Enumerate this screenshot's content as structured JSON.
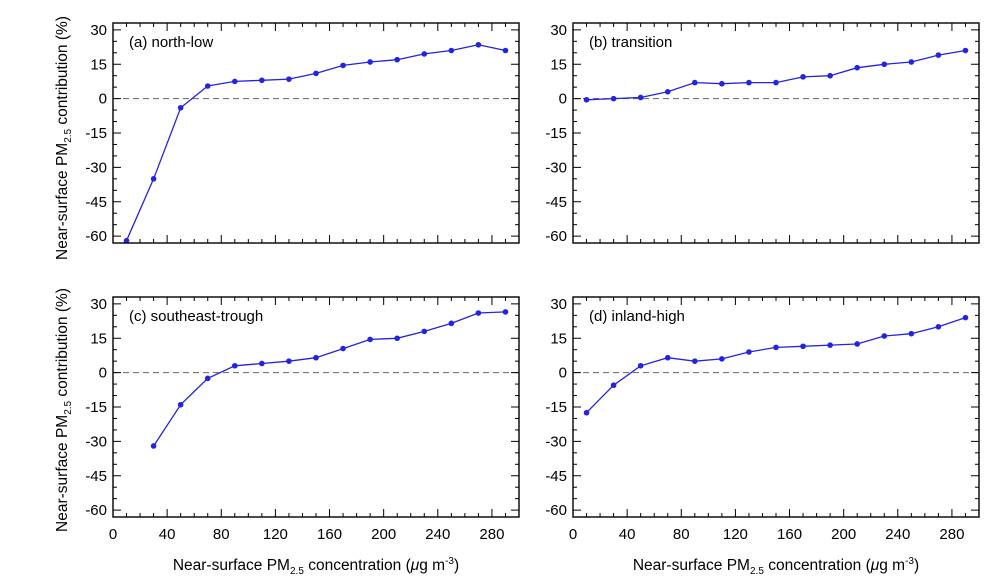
{
  "colors": {
    "series": "#2323e0",
    "zero_line": "#666666",
    "axis": "#000000"
  },
  "axis_labels": {
    "y": {
      "main": "Near-surface PM",
      "sub": "2.5",
      "suffix": " contribution (%)"
    },
    "x": {
      "main": "Near-surface PM",
      "sub": "2.5",
      "mid": " concentration (",
      "mu": "μ",
      "unit": "g m",
      "sup": "-3",
      "end": ")"
    }
  },
  "chart_data": [
    {
      "type": "line",
      "annotation": "(a) north-low",
      "x": [
        10,
        30,
        50,
        70,
        90,
        110,
        130,
        150,
        170,
        190,
        210,
        230,
        250,
        270,
        290
      ],
      "y": [
        -62,
        -35,
        -4,
        5.5,
        7.5,
        8,
        8.5,
        11,
        14.5,
        16,
        17,
        19.5,
        21,
        23.5,
        21
      ],
      "xlim": [
        0,
        300
      ],
      "ylim": [
        -63,
        33
      ],
      "xticks": [
        0,
        40,
        80,
        120,
        160,
        200,
        240,
        280
      ],
      "yticks": [
        30,
        15,
        0,
        -15,
        -30,
        -45,
        -60
      ],
      "reference_line": 0
    },
    {
      "type": "line",
      "annotation": "(b) transition",
      "x": [
        10,
        30,
        50,
        70,
        90,
        110,
        130,
        150,
        170,
        190,
        210,
        230,
        250,
        270,
        290
      ],
      "y": [
        -0.5,
        0,
        0.5,
        3,
        7,
        6.5,
        7,
        7,
        9.5,
        10,
        13.5,
        15,
        16,
        19,
        21
      ],
      "xlim": [
        0,
        300
      ],
      "ylim": [
        -63,
        33
      ],
      "xticks": [
        0,
        40,
        80,
        120,
        160,
        200,
        240,
        280
      ],
      "yticks": [
        30,
        15,
        0,
        -15,
        -30,
        -45,
        -60
      ],
      "reference_line": 0
    },
    {
      "type": "line",
      "annotation": "(c) southeast-trough",
      "x": [
        30,
        50,
        70,
        90,
        110,
        130,
        150,
        170,
        190,
        210,
        230,
        250,
        270,
        290
      ],
      "y": [
        -32,
        -14,
        -2.5,
        3,
        4,
        5,
        6.5,
        10.5,
        14.5,
        15,
        18,
        21.5,
        26,
        26.5
      ],
      "xlim": [
        0,
        300
      ],
      "ylim": [
        -63,
        33
      ],
      "xticks": [
        0,
        40,
        80,
        120,
        160,
        200,
        240,
        280
      ],
      "yticks": [
        30,
        15,
        0,
        -15,
        -30,
        -45,
        -60
      ],
      "reference_line": 0
    },
    {
      "type": "line",
      "annotation": "(d) inland-high",
      "x": [
        10,
        30,
        50,
        70,
        90,
        110,
        130,
        150,
        170,
        190,
        210,
        230,
        250,
        270,
        290
      ],
      "y": [
        -17.5,
        -5.5,
        3,
        6.5,
        5,
        6,
        9,
        11,
        11.5,
        12,
        12.5,
        16,
        17,
        20,
        24
      ],
      "xlim": [
        0,
        300
      ],
      "ylim": [
        -63,
        33
      ],
      "xticks": [
        0,
        40,
        80,
        120,
        160,
        200,
        240,
        280
      ],
      "yticks": [
        30,
        15,
        0,
        -15,
        -30,
        -45,
        -60
      ],
      "reference_line": 0
    }
  ]
}
